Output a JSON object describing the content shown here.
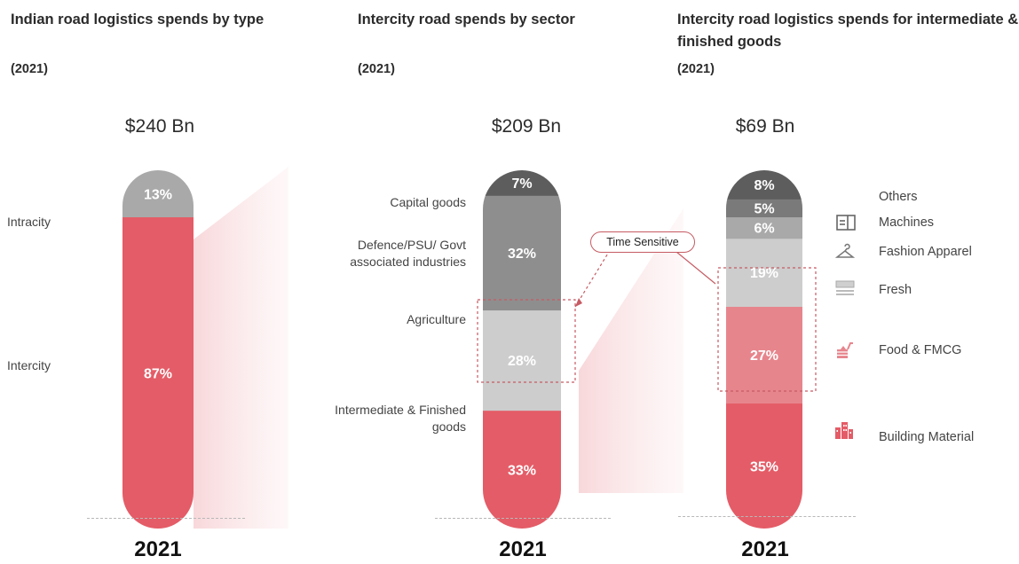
{
  "colors": {
    "intercity_red": "#e45c67",
    "food_pink": "#e7858d",
    "light_grey": "#cdcdcd",
    "mid_grey": "#a9a9a9",
    "dark_grey": "#8e8e8e",
    "darker_grey": "#5d5d5d",
    "callout_red": "#c65b63"
  },
  "callout": {
    "label": "Time Sensitive"
  },
  "chart_data": [
    {
      "type": "bar",
      "title": "Indian road logistics spends by type",
      "subtitle": "(2021)",
      "total_label": "$240 Bn",
      "categories": [
        "2021"
      ],
      "stacked": true,
      "series": [
        {
          "name": "Intercity",
          "values": [
            87
          ],
          "label": "87%",
          "color": "#e45c67"
        },
        {
          "name": "Intracity",
          "values": [
            13
          ],
          "label": "13%",
          "color": "#a9a9a9"
        }
      ],
      "unit": "%"
    },
    {
      "type": "bar",
      "title": "Intercity road spends by sector",
      "subtitle": "(2021)",
      "total_label": "$209 Bn",
      "categories": [
        "2021"
      ],
      "stacked": true,
      "series": [
        {
          "name": "Intermediate & Finished goods",
          "values": [
            33
          ],
          "label": "33%",
          "color": "#e45c67"
        },
        {
          "name": "Agriculture",
          "values": [
            28
          ],
          "label": "28%",
          "color": "#cdcdcd"
        },
        {
          "name": "Defence/PSU/ Govt associated industries",
          "values": [
            32
          ],
          "label": "32%",
          "color": "#8e8e8e"
        },
        {
          "name": "Capital goods",
          "values": [
            7
          ],
          "label": "7%",
          "color": "#5d5d5d"
        }
      ],
      "unit": "%"
    },
    {
      "type": "bar",
      "title": "Intercity road logistics spends for intermediate & finished goods",
      "subtitle": "(2021)",
      "total_label": "$69 Bn",
      "categories": [
        "2021"
      ],
      "stacked": true,
      "series": [
        {
          "name": "Building Material",
          "values": [
            35
          ],
          "label": "35%",
          "color": "#e45c67",
          "icon": "buildings-icon"
        },
        {
          "name": "Food & FMCG",
          "values": [
            27
          ],
          "label": "27%",
          "color": "#e7858d",
          "icon": "food-cart-icon"
        },
        {
          "name": "Fresh",
          "values": [
            19
          ],
          "label": "19%",
          "color": "#cdcdcd",
          "icon": "fresh-crate-icon"
        },
        {
          "name": "Fashion Apparel",
          "values": [
            6
          ],
          "label": "6%",
          "color": "#a9a9a9",
          "icon": "hanger-icon"
        },
        {
          "name": "Machines",
          "values": [
            5
          ],
          "label": "5%",
          "color": "#7a7a7a",
          "icon": "machine-icon"
        },
        {
          "name": "Others",
          "values": [
            8
          ],
          "label": "8%",
          "color": "#5d5d5d"
        }
      ],
      "unit": "%"
    }
  ]
}
